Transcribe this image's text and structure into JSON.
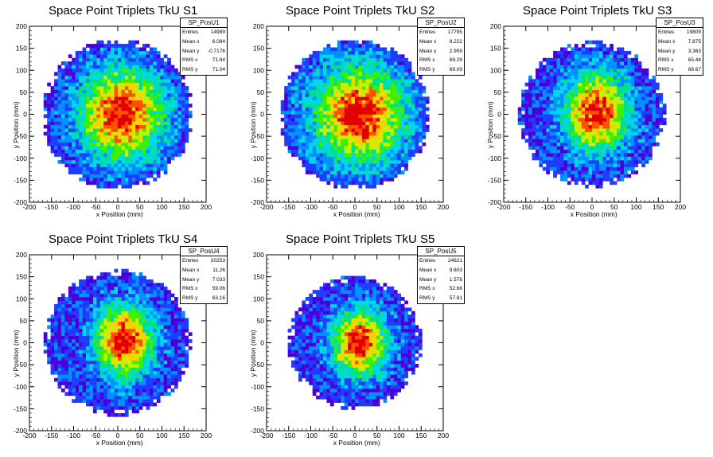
{
  "chart_data": [
    {
      "type": "heatmap",
      "title": "Space Point Triplets TkU S1",
      "xlabel": "x Position (mm)",
      "ylabel": "y Position (mm)",
      "xlim": [
        -200,
        200
      ],
      "ylim": [
        -200,
        200
      ],
      "xticks": [
        -200,
        -150,
        -100,
        -50,
        0,
        50,
        100,
        150,
        200
      ],
      "yticks": [
        -200,
        -150,
        -100,
        -50,
        0,
        50,
        100,
        150,
        200
      ],
      "stats": {
        "name": "SP_PosU1",
        "entries": "14989",
        "mean_x": "6.084",
        "mean_y": "-0.7176",
        "rms_x": "71.84",
        "rms_y": "71.04"
      },
      "radius_mm": 165,
      "core": {
        "cx": 10,
        "cy": 0,
        "sx": 65,
        "sy": 70
      },
      "hole": null
    },
    {
      "type": "heatmap",
      "title": "Space Point Triplets TkU S2",
      "xlabel": "x Position (mm)",
      "ylabel": "y Position (mm)",
      "xlim": [
        -200,
        200
      ],
      "ylim": [
        -200,
        200
      ],
      "xticks": [
        -200,
        -150,
        -100,
        -50,
        0,
        50,
        100,
        150,
        200
      ],
      "yticks": [
        -200,
        -150,
        -100,
        -50,
        0,
        50,
        100,
        150,
        200
      ],
      "stats": {
        "name": "SP_PosU2",
        "entries": "17795",
        "mean_x": "8.222",
        "mean_y": "2.959",
        "rms_x": "69.29",
        "rms_y": "69.09"
      },
      "radius_mm": 165,
      "core": {
        "cx": 10,
        "cy": 0,
        "sx": 70,
        "sy": 75
      },
      "hole": null
    },
    {
      "type": "heatmap",
      "title": "Space Point Triplets TkU S3",
      "xlabel": "x Position (mm)",
      "ylabel": "y Position (mm)",
      "xlim": [
        -200,
        200
      ],
      "ylim": [
        -200,
        200
      ],
      "xticks": [
        -200,
        -150,
        -100,
        -50,
        0,
        50,
        100,
        150,
        200
      ],
      "yticks": [
        -200,
        -150,
        -100,
        -50,
        0,
        50,
        100,
        150,
        200
      ],
      "stats": {
        "name": "SP_PosU3",
        "entries": "19809",
        "mean_x": "7.875",
        "mean_y": "3.363",
        "rms_x": "65.44",
        "rms_y": "68.67"
      },
      "radius_mm": 160,
      "core": {
        "cx": 10,
        "cy": 5,
        "sx": 50,
        "sy": 60
      },
      "hole": null
    },
    {
      "type": "heatmap",
      "title": "Space Point Triplets TkU S4",
      "xlabel": "x Position (mm)",
      "ylabel": "y Position (mm)",
      "xlim": [
        -200,
        200
      ],
      "ylim": [
        -200,
        200
      ],
      "xticks": [
        -200,
        -150,
        -100,
        -50,
        0,
        50,
        100,
        150,
        200
      ],
      "yticks": [
        -200,
        -150,
        -100,
        -50,
        0,
        50,
        100,
        150,
        200
      ],
      "stats": {
        "name": "SP_PosU4",
        "entries": "20253",
        "mean_x": "11.26",
        "mean_y": "7.033",
        "rms_x": "59.06",
        "rms_y": "63.16"
      },
      "radius_mm": 160,
      "core": {
        "cx": 15,
        "cy": 5,
        "sx": 45,
        "sy": 55
      },
      "hole": null
    },
    {
      "type": "heatmap",
      "title": "Space Point Triplets TkU S5",
      "xlabel": "x Position (mm)",
      "ylabel": "y Position (mm)",
      "xlim": [
        -200,
        200
      ],
      "ylim": [
        -200,
        200
      ],
      "xticks": [
        -200,
        -150,
        -100,
        -50,
        0,
        50,
        100,
        150,
        200
      ],
      "yticks": [
        -200,
        -150,
        -100,
        -50,
        0,
        50,
        100,
        150,
        200
      ],
      "stats": {
        "name": "SP_PosU5",
        "entries": "24621",
        "mean_x": "9.603",
        "mean_y": "1.578",
        "rms_x": "52.68",
        "rms_y": "57.81"
      },
      "radius_mm": 145,
      "core": {
        "cx": 10,
        "cy": 0,
        "sx": 42,
        "sy": 52
      },
      "hole": null
    }
  ],
  "colors": {
    "palette": [
      "#4a00d8",
      "#1f3cff",
      "#0090ff",
      "#00d8e8",
      "#00e08a",
      "#3cf000",
      "#c8f000",
      "#ffd000",
      "#ff5000",
      "#e00000"
    ],
    "axis": "#000000",
    "background": "#ffffff"
  }
}
